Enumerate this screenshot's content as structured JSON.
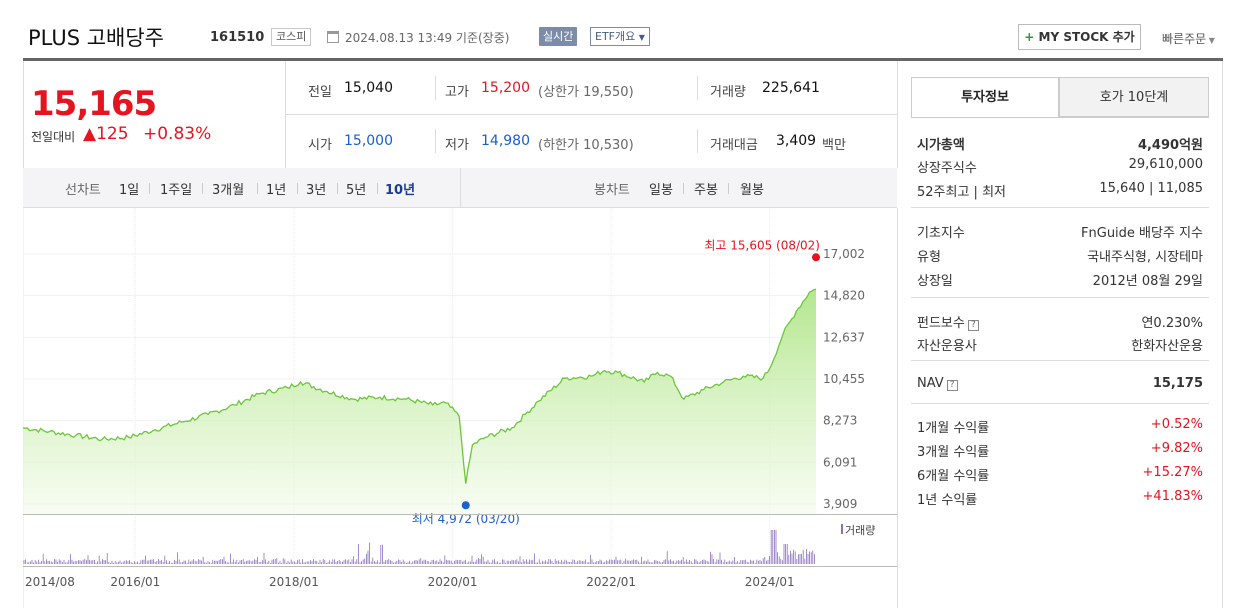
{
  "header": {
    "stock_name": "PLUS 고배당주",
    "stock_code": "161510",
    "market": "코스피",
    "timestamp": "2024.08.13 13:49  기준(장중)",
    "realtime_label": "실시간",
    "etf_label": "ETF개요",
    "mystock_label": "MY STOCK 추가",
    "quick_order_label": "빠른주문"
  },
  "quote": {
    "price": "15,165",
    "change_label": "전일대비",
    "change_value": "125",
    "change_pct": "+0.83%",
    "prev_label": "전일",
    "prev_value": "15,040",
    "open_label": "시가",
    "open_value": "15,000",
    "high_label": "고가",
    "high_value": "15,200",
    "upper_limit_text": "(상한가 19,550)",
    "low_label": "저가",
    "low_value": "14,980",
    "lower_limit_text": "(하한가 10,530)",
    "volume_label": "거래량",
    "volume_value": "225,641",
    "amount_label": "거래대금",
    "amount_value": "3,409",
    "amount_unit": "백만"
  },
  "period_tabs": {
    "line_label": "선차트",
    "line_items": [
      "1일",
      "1주일",
      "3개월",
      "1년",
      "3년",
      "5년",
      "10년"
    ],
    "active": "10년",
    "candle_label": "봉차트",
    "candle_items": [
      "일봉",
      "주봉",
      "월봉"
    ]
  },
  "chart_data": {
    "type": "area",
    "y_ticks": [
      "17,002",
      "14,820",
      "12,637",
      "10,455",
      "8,273",
      "6,091",
      "3,909"
    ],
    "ylim": [
      3909,
      17002
    ],
    "x_ticks": [
      "2014/08",
      "2016/01",
      "2018/01",
      "2020/01",
      "2022/01",
      "2024/01"
    ],
    "max_label": "최고 15,605 (08/02)",
    "min_label": "최저 4,972 (03/20)",
    "volume_label": "거래량",
    "series": [
      {
        "x": [
          "2014/08",
          "2014/12",
          "2015/04",
          "2015/08",
          "2015/12",
          "2016/04",
          "2016/08",
          "2016/12",
          "2017/04",
          "2017/08",
          "2017/12",
          "2018/02",
          "2018/06",
          "2018/10",
          "2019/02",
          "2019/06",
          "2019/10",
          "2019/12",
          "2020/02",
          "2020/03",
          "2020/04",
          "2020/06",
          "2020/10",
          "2020/12",
          "2021/02",
          "2021/06",
          "2021/10",
          "2021/12",
          "2022/02",
          "2022/06",
          "2022/08",
          "2022/10",
          "2022/12",
          "2023/03",
          "2023/06",
          "2023/09",
          "2023/12",
          "2024/01",
          "2024/03",
          "2024/05",
          "2024/07",
          "2024/08"
        ],
        "values": [
          7900,
          7700,
          7500,
          7300,
          7400,
          7800,
          8200,
          8600,
          9100,
          9700,
          10000,
          10300,
          9800,
          9400,
          9500,
          9400,
          9100,
          9200,
          8500,
          4972,
          7000,
          7400,
          7900,
          8600,
          9300,
          10500,
          10600,
          10900,
          10800,
          10300,
          10800,
          10600,
          9400,
          9900,
          10300,
          10600,
          10500,
          11000,
          12800,
          14000,
          15000,
          15165
        ]
      }
    ]
  },
  "info": {
    "tab_invest": "투자정보",
    "tab_orderbook": "호가 10단계",
    "market_cap_label": "시가총액",
    "market_cap_value": "4,490억원",
    "shares_label": "상장주식수",
    "shares_value": "29,610,000",
    "week52_label": "52주최고 | 최저",
    "week52_value": "15,640 | 11,085",
    "base_index_label": "기초지수",
    "base_index_value": "FnGuide 배당주 지수",
    "type_label": "유형",
    "type_value": "국내주식형, 시장테마",
    "listing_label": "상장일",
    "listing_value": "2012년 08월 29일",
    "fee_label": "펀드보수",
    "fee_value": "연0.230%",
    "manager_label": "자산운용사",
    "manager_value": "한화자산운용",
    "nav_label": "NAV",
    "nav_value": "15,175",
    "r1m_label": "1개월 수익률",
    "r1m_value": "+0.52%",
    "r3m_label": "3개월 수익률",
    "r3m_value": "+9.82%",
    "r6m_label": "6개월 수익률",
    "r6m_value": "+15.27%",
    "r1y_label": "1년 수익률",
    "r1y_value": "+41.83%"
  }
}
